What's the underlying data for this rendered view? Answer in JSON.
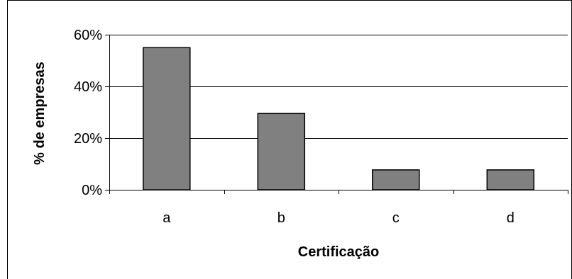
{
  "chart_data": {
    "type": "bar",
    "categories": [
      "a",
      "b",
      "c",
      "d"
    ],
    "values": [
      55,
      29.5,
      7.7,
      7.7
    ],
    "value_unit": "%",
    "xlabel": "Certificação",
    "ylabel": "% de empresas",
    "ylim": [
      0,
      60
    ],
    "yticks": [
      0,
      20,
      40,
      60
    ],
    "ytick_labels": [
      "0%",
      "20%",
      "40%",
      "60%"
    ],
    "grid": "horizontal major gridlines",
    "legend": "none",
    "colors": {
      "bar_fill": "#808080",
      "bar_stroke": "#000000",
      "grid": "#000000",
      "axis": "#000000",
      "background": "#ffffff"
    }
  }
}
